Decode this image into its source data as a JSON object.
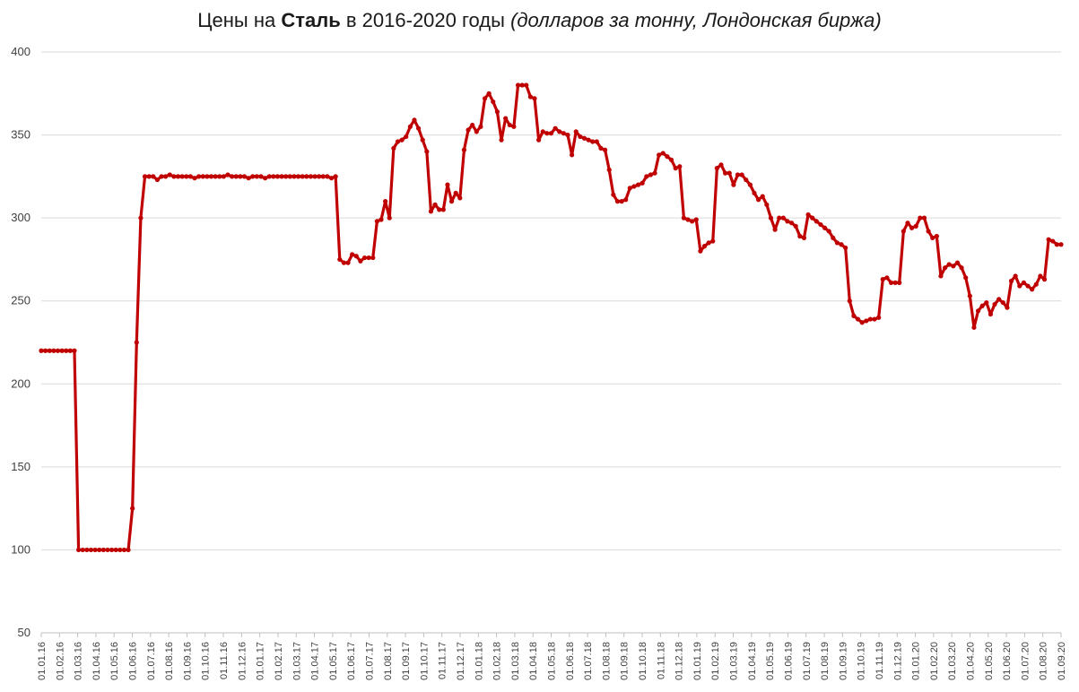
{
  "chart_data": {
    "type": "line",
    "title": {
      "prefix": "Цены на ",
      "commodity": "Сталь",
      "middle": " в 2016-2020 годы ",
      "unit": "(долларов за тонну, Лондонская биржа)"
    },
    "ylim": [
      50,
      400
    ],
    "yticks": [
      50,
      100,
      150,
      200,
      250,
      300,
      350,
      400
    ],
    "grid": true,
    "line_color": "#c00000",
    "x_tick_labels": [
      "01.01.16",
      "01.02.16",
      "01.03.16",
      "01.04.16",
      "01.05.16",
      "01.06.16",
      "01.07.16",
      "01.08.16",
      "01.09.16",
      "01.10.16",
      "01.11.16",
      "01.12.16",
      "01.01.17",
      "01.02.17",
      "01.03.17",
      "01.04.17",
      "01.05.17",
      "01.06.17",
      "01.07.17",
      "01.08.17",
      "01.09.17",
      "01.10.17",
      "01.11.17",
      "01.12.17",
      "01.01.18",
      "01.02.18",
      "01.03.18",
      "01.04.18",
      "01.05.18",
      "01.06.18",
      "01.07.18",
      "01.08.18",
      "01.09.18",
      "01.10.18",
      "01.11.18",
      "01.12.18",
      "01.01.19",
      "01.02.19",
      "01.03.19",
      "01.04.19",
      "01.05.19",
      "01.06.19",
      "01.07.19",
      "01.08.19",
      "01.09.19",
      "01.10.19",
      "01.11.19",
      "01.12.19",
      "01.01.20",
      "01.02.20",
      "01.03.20",
      "01.04.20",
      "01.05.20",
      "01.06.20",
      "01.07.20",
      "01.08.20",
      "01.09.20"
    ],
    "series": [
      {
        "values": [
          220,
          220,
          220,
          220,
          220,
          220,
          220,
          220,
          220,
          100,
          100,
          100,
          100,
          100,
          100,
          100,
          100,
          100,
          100,
          100,
          100,
          100,
          125,
          225,
          300,
          325,
          325,
          325,
          323,
          325,
          325,
          326,
          325,
          325,
          325,
          325,
          325,
          324,
          325,
          325,
          325,
          325,
          325,
          325,
          325,
          326,
          325,
          325,
          325,
          325,
          324,
          325,
          325,
          325,
          324,
          325,
          325,
          325,
          325,
          325,
          325,
          325,
          325,
          325,
          325,
          325,
          325,
          325,
          325,
          325,
          324,
          325,
          275,
          273,
          273,
          278,
          277,
          274,
          276,
          276,
          276,
          298,
          299,
          310,
          300,
          342,
          346,
          347,
          349,
          355,
          359,
          354,
          347,
          340,
          304,
          308,
          305,
          305,
          320,
          310,
          315,
          312,
          341,
          353,
          356,
          352,
          355,
          372,
          375,
          370,
          364,
          347,
          360,
          356,
          355,
          380,
          380,
          380,
          373,
          372,
          347,
          352,
          351,
          351,
          354,
          352,
          351,
          350,
          338,
          352,
          349,
          348,
          347,
          346,
          346,
          342,
          341,
          329,
          314,
          310,
          310,
          311,
          318,
          319,
          320,
          321,
          325,
          326,
          327,
          338,
          339,
          337,
          335,
          330,
          331,
          300,
          299,
          298,
          299,
          280,
          283,
          285,
          286,
          330,
          332,
          327,
          327,
          320,
          326,
          326,
          323,
          320,
          315,
          311,
          313,
          308,
          300,
          293,
          300,
          300,
          298,
          297,
          295,
          289,
          288,
          302,
          300,
          298,
          296,
          294,
          292,
          288,
          285,
          284,
          282,
          250,
          241,
          239,
          237,
          238,
          239,
          239,
          240,
          263,
          264,
          261,
          261,
          261,
          292,
          297,
          294,
          295,
          300,
          300,
          292,
          288,
          289,
          265,
          270,
          272,
          271,
          273,
          270,
          264,
          253,
          234,
          244,
          247,
          249,
          242,
          248,
          251,
          249,
          246,
          262,
          265,
          259,
          261,
          259,
          257,
          260,
          265,
          263,
          287,
          286,
          284,
          284
        ]
      }
    ]
  }
}
